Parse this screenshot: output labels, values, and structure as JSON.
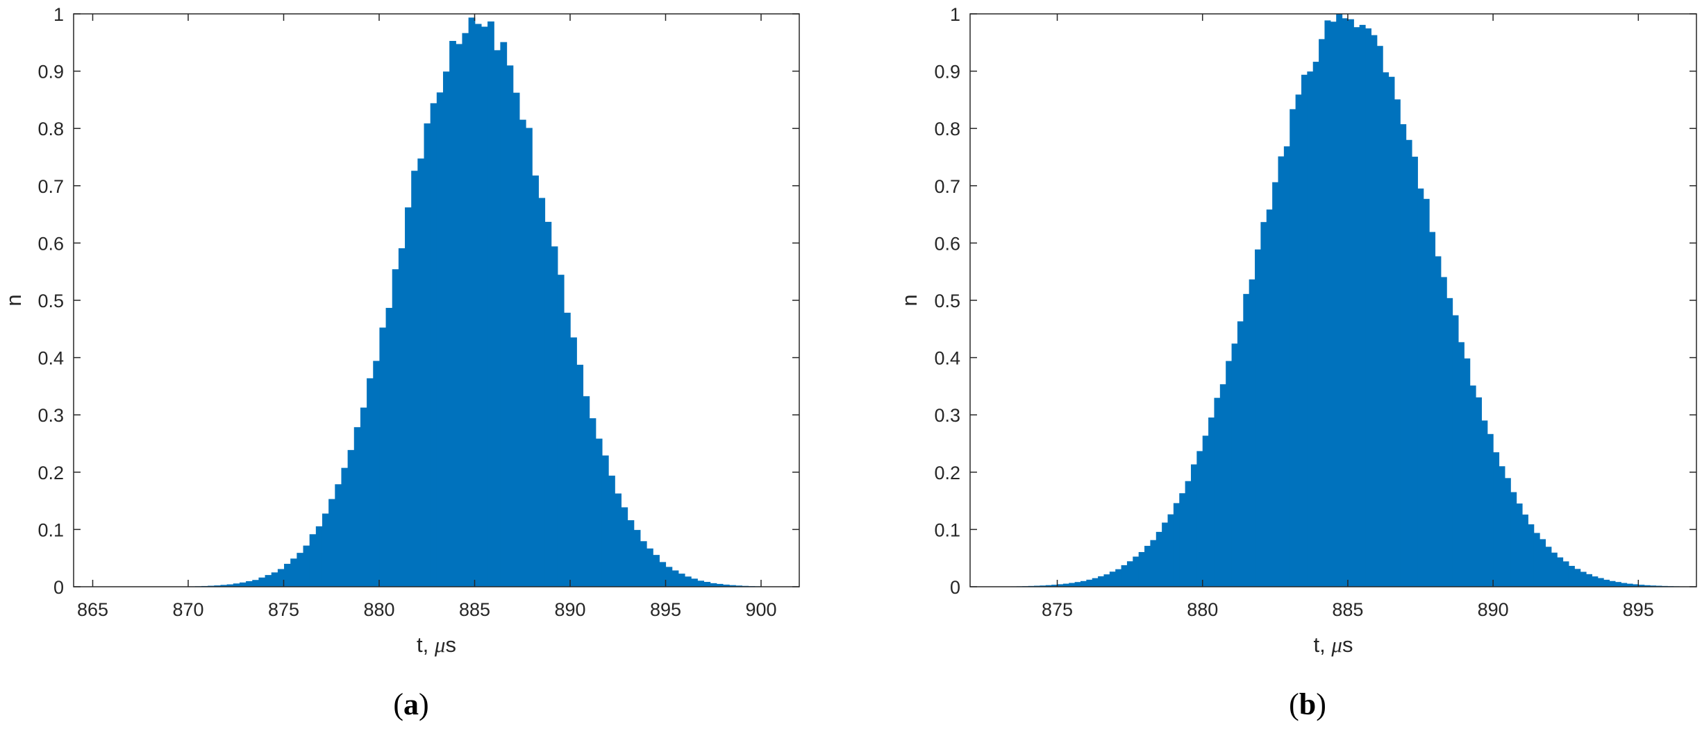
{
  "chart_data": [
    {
      "type": "histogram",
      "panel": "a",
      "caption_prefix": "(",
      "caption_letter": "a",
      "caption_suffix": ")",
      "xlabel_main": "t, ",
      "xlabel_mu": "μ",
      "xlabel_unit": "s",
      "ylabel": "n",
      "xlim": [
        864,
        902
      ],
      "ylim": [
        0,
        1
      ],
      "xticks": [
        "865",
        "870",
        "875",
        "880",
        "885",
        "890",
        "895",
        "900"
      ],
      "yticks": [
        "0",
        "0.1",
        "0.2",
        "0.3",
        "0.4",
        "0.5",
        "0.6",
        "0.7",
        "0.8",
        "0.9",
        "1"
      ],
      "color": "#0072BD",
      "mean": 885.1,
      "sigma": 3.9,
      "bin_width": 0.333,
      "grid": false
    },
    {
      "type": "histogram",
      "panel": "b",
      "caption_prefix": "(",
      "caption_letter": "b",
      "caption_suffix": ")",
      "xlabel_main": "t, ",
      "xlabel_mu": "μ",
      "xlabel_unit": "s",
      "ylabel": "n",
      "xlim": [
        872,
        897
      ],
      "ylim": [
        0,
        1
      ],
      "xticks": [
        "875",
        "880",
        "885",
        "890",
        "895"
      ],
      "yticks": [
        "0",
        "0.1",
        "0.2",
        "0.3",
        "0.4",
        "0.5",
        "0.6",
        "0.7",
        "0.8",
        "0.9",
        "1"
      ],
      "color": "#0072BD",
      "mean": 885.0,
      "sigma": 3.0,
      "bin_width": 0.2,
      "grid": false
    }
  ]
}
